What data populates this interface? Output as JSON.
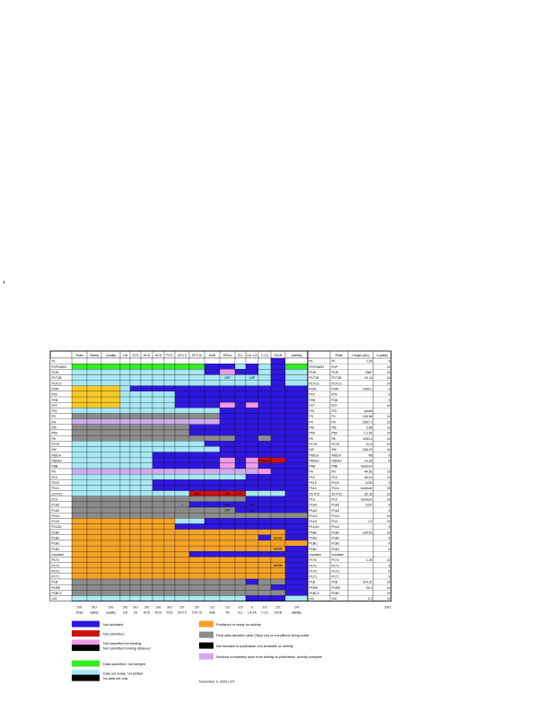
{
  "colors": {
    "blue": "#2f17e0",
    "red": "#cc1111",
    "pink": "#f09ae8",
    "green": "#33ee22",
    "cyan": "#a8e8f4",
    "orange": "#f4a228",
    "gray": "#8c8c8c",
    "black": "#000000",
    "lavender": "#cfaaf0",
    "yellow": "#f8c828",
    "lightcyan": "#b8eef8",
    "white": "#ffffff",
    "darkred": "#a01818"
  },
  "header": [
    "Trials",
    "Safety",
    "Quality",
    "CB",
    "2CS",
    "HCS",
    "HCS",
    "PCS",
    "CFC II",
    "CFC III",
    "NuB",
    "TilSun",
    "CLL",
    "Lib 1-A",
    "C-13",
    "ToCB",
    "viability"
  ],
  "right_header": [
    "Plate",
    "Length (km)",
    "# plates"
  ],
  "rows": [
    {
      "name": "P1",
      "seg": "wwwwwwwwwwwwwwwbw",
      "plate": "P1",
      "len": "1.25",
      "n": "0"
    },
    {
      "name": "P1PGM03",
      "seg": "ggggggggggbbcbcbg",
      "plate": "P1P",
      "len": "",
      "n": "13"
    },
    {
      "name": "P1W",
      "seg": "ccccccccccbpbbcbc",
      "plate": "P1W",
      "len": "1587",
      "n": "10"
    },
    {
      "name": "P1T1B",
      "seg": "cccccccccccccccbc",
      "plate": "P1T1B",
      "len": "10.14",
      "n": "10"
    },
    {
      "name": "P1TCn",
      "seg": "cccccccccccccccbc",
      "plate": "P1TCn",
      "len": "",
      "n": "14"
    },
    {
      "name": "P2W",
      "seg": "yyycbbbbbbbbbbbbb",
      "plate": "P2W",
      "len": "1265.1",
      "n": "0"
    },
    {
      "name": "P2C",
      "seg": "yyycccccbbbbbbbbb",
      "plate": "P2C",
      "len": "",
      "n": "0"
    },
    {
      "name": "P2B",
      "seg": "yyycccccbbbbbbbbb",
      "plate": "P2B",
      "len": "",
      "n": "0"
    },
    {
      "name": "P2T",
      "seg": "yyycccccbbbpbpbbb",
      "plate": "P2T",
      "len": "",
      "n": "10"
    },
    {
      "name": "P2L",
      "seg": "cccccccccccbbbbbb",
      "plate": "P2L",
      "len": "plead",
      "n": ""
    },
    {
      "name": "P3",
      "seg": "aaaaaaaaaaabbbbbb",
      "plate": "P3",
      "len": "128.58",
      "n": "10"
    },
    {
      "name": "P4",
      "seg": "lllllllllllbbbbbb",
      "plate": "P4",
      "len": "1557.1",
      "n": "10"
    },
    {
      "name": "P5I",
      "seg": "aaaaaaaaabbbbbbbb",
      "plate": "P5I",
      "len": "3.65",
      "n": "10"
    },
    {
      "name": "P5II",
      "seg": "aaaaaaaaabbbbbbbb",
      "plate": "P5II",
      "len": "1.2.56",
      "n": "10"
    },
    {
      "name": "P6",
      "seg": "aaaaaaaaaaaabbabb",
      "plate": "P6",
      "len": "1283.4",
      "n": "10"
    },
    {
      "name": "P1T8",
      "seg": "ccccccccccbbbbbbb",
      "plate": "P1T8",
      "len": "41.6",
      "n": "10"
    },
    {
      "name": "2W",
      "seg": "cccccccccccbbbbbb",
      "plate": "2W",
      "len": "136.22",
      "n": "10"
    },
    {
      "name": "P8ICH",
      "seg": "ccccccbbbbbbbbbbb",
      "plate": "P8ICH",
      "len": "P8",
      "n": "0"
    },
    {
      "name": "P8HAJ",
      "seg": "ccccccbbbbbpbprrb",
      "plate": "P8HAJ",
      "len": "10.33",
      "n": "0"
    },
    {
      "name": "P8B",
      "seg": "ccccccbbbbbpbpbbb",
      "plate": "P8B",
      "len": "medium",
      "n": ""
    },
    {
      "name": "P9",
      "seg": "llllllllllllllpbb",
      "plate": "P9",
      "len": "44.52",
      "n": "13"
    },
    {
      "name": "P10",
      "seg": "cccccccccccccbbbb",
      "plate": "P10",
      "len": "46.01",
      "n": "14"
    },
    {
      "name": "P11S",
      "seg": "ccccccbbbbbbbbbbb",
      "plate": "P11S",
      "len": "1230",
      "n": "0"
    },
    {
      "name": "P11n",
      "seg": "ccccccbbbbbbbbbbb",
      "plate": "P11n",
      "len": "medium",
      "n": "15"
    },
    {
      "name": "2S P12",
      "seg": "cccccccccrrrrcccb",
      "plate": "2S P12",
      "len": "26.16",
      "n": "13"
    },
    {
      "name": "P13",
      "seg": "aaaaaaaaaaaaabbbb",
      "plate": "P13",
      "len": "medium",
      "n": "10"
    },
    {
      "name": "P1A3",
      "seg": "aaaaaaaaabbbbbbbb",
      "plate": "P1A3",
      "len": "1137",
      "n": "0"
    },
    {
      "name": "P1A2",
      "seg": "aaaaaaaaaaaabbbbb",
      "plate": "P1A2",
      "len": "",
      "n": "0"
    },
    {
      "name": "P1U1",
      "seg": "aaaaaaaaaaaaaaaaa",
      "plate": "P1U1",
      "len": "",
      "n": "14"
    },
    {
      "name": "P1U2",
      "seg": "ooooooooccbbbbbbb",
      "plate": "P1U",
      "len": "1.2",
      "n": "10"
    },
    {
      "name": "P1U1b",
      "seg": "oooooooobbbbbbbbb",
      "plate": "P1U1",
      "len": "",
      "n": "0"
    },
    {
      "name": "P1Bn",
      "seg": "oooooooooooooooob",
      "plate": "P1Bn",
      "len": "128.51",
      "n": "10"
    },
    {
      "name": "P1B2",
      "seg": "oooooooooooooobob",
      "plate": "P1B2",
      "len": "",
      "n": "0"
    },
    {
      "name": "P1BC",
      "seg": "ooooooooooooooooo",
      "plate": "P1BC",
      "len": "",
      "n": "0"
    },
    {
      "name": "P1B1",
      "seg": "oooooooooooooooob",
      "plate": "P1B1",
      "len": "",
      "n": "0"
    },
    {
      "name": "Lisodam",
      "seg": "ooooooooobbbbbbbb",
      "plate": "Lisodam",
      "len": "",
      "n": ""
    },
    {
      "name": "P1Tn",
      "seg": "oooooooooooooooob",
      "plate": "P1Tn",
      "len": "1.25",
      "n": "10"
    },
    {
      "name": "P1T2",
      "seg": "oooooooooooooooob",
      "plate": "P1T2",
      "len": "",
      "n": "0"
    },
    {
      "name": "P1TC",
      "seg": "oooooooooooooooob",
      "plate": "P1TC",
      "len": "",
      "n": "0"
    },
    {
      "name": "P1T1",
      "seg": "oooooooooooooooob",
      "plate": "P1T1",
      "len": "",
      "n": "0"
    },
    {
      "name": "P1B",
      "seg": "aaaaaaaaaaaaabaab",
      "plate": "P1B",
      "len": "104.32",
      "n": "14"
    },
    {
      "name": "P1RB",
      "seg": "aaaaaaaaaaaaaaabb",
      "plate": "P1RB",
      "len": "25.3",
      "n": "14"
    },
    {
      "name": "P1BC2",
      "seg": "aaaaaaaaaaaaaaaab",
      "plate": "P1BC",
      "len": "",
      "n": "10"
    },
    {
      "name": "n31",
      "seg": "cccccccccccccbbbc",
      "plate": "n31",
      "len": "5.3",
      "n": "10"
    }
  ],
  "cell_text": [
    {
      "row": 3,
      "col": 11,
      "text": "1GP"
    },
    {
      "row": 3,
      "col": 13,
      "text": "1GP"
    },
    {
      "row": 26,
      "col": 11,
      "text": "1GP"
    },
    {
      "row": 26,
      "col": 13,
      "text": "1GP"
    },
    {
      "row": 26,
      "col": 8,
      "text": "1"
    },
    {
      "row": 27,
      "col": 11,
      "text": "1GP"
    },
    {
      "row": 27,
      "col": 13,
      "text": "1GP"
    },
    {
      "row": 18,
      "col": 14,
      "text": "Peimonut"
    },
    {
      "row": 24,
      "col": 9,
      "text": "Sarl"
    },
    {
      "row": 24,
      "col": 11,
      "text": "1Sb"
    },
    {
      "row": 24,
      "col": 12,
      "text": "Sb"
    },
    {
      "row": 32,
      "col": 15,
      "text": "activite"
    },
    {
      "row": 34,
      "col": 15,
      "text": "activite"
    },
    {
      "row": 37,
      "col": 15,
      "text": "activite"
    }
  ],
  "footer": [
    "3/U",
    "3/U",
    "3/U",
    "3/U",
    "3/U",
    "3/U",
    "3/U",
    "3/U",
    "2/2",
    "2/2",
    "1/2",
    "1/2",
    "1/3",
    "0",
    "1/2",
    "2/2",
    "1/4"
  ],
  "footer_sub": [
    "Trials",
    "Safety",
    "Quality",
    "CB",
    "2S",
    "HCS",
    "HCS",
    "PCS",
    "CFC II",
    "CFC III",
    "NuB",
    "Till",
    "CLL",
    "Lib 1A",
    "C-13",
    "ToCB",
    "viability"
  ],
  "footer_right": "29/U",
  "legend_left": [
    {
      "color": "blue",
      "label": "Not activated"
    },
    {
      "color": "red",
      "label": "Not submitted"
    },
    {
      "color": "pink",
      "label": "Not submitted for funding"
    },
    {
      "color": "black",
      "label": "Not submitted funding obtained"
    },
    {
      "color": "green",
      "label": "Data submitted, not merged"
    },
    {
      "color": "cyan",
      "label": "Data set ready, not plotted"
    },
    {
      "color": "black",
      "label": "No data set only"
    }
  ],
  "legend_right": [
    {
      "color": "orange",
      "label": "Published or ready for activity"
    },
    {
      "color": "gray",
      "label": "Final data situation clear (Tapp cm) on conditions being made"
    },
    {
      "color": "black",
      "label": "Not included in publication, but available on activity"
    },
    {
      "color": "lavender",
      "label": "Sections completely done from activity to publication, activity complete"
    }
  ],
  "footer_note": "November 3, 2003 LOT"
}
